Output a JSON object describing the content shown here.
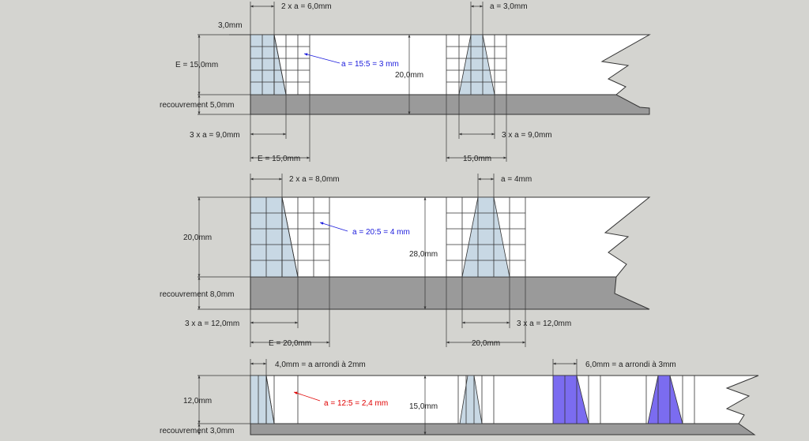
{
  "diagram1": {
    "top_dim_left": "2 x a = 6,0mm",
    "dim_3mm": "3,0mm",
    "label_E": "E = 15,0mm",
    "label_recouvrement": "recouvrement 5,0mm",
    "label_3a": "3 x a = 9,0mm",
    "label_E_bottom": "E = 15,0mm",
    "annotation": "a = 15:5 = 3 mm",
    "height_total": "20,0mm",
    "top_dim_right": "a = 3,0mm",
    "label_3a_right": "3 x a = 9,0mm",
    "label_15_right": "15,0mm"
  },
  "diagram2": {
    "top_dim_left": "2 x a = 8,0mm",
    "label_height": "20,0mm",
    "label_recouvrement": "recouvrement 8,0mm",
    "label_3a": "3 x a = 12,0mm",
    "label_E_bottom": "E = 20,0mm",
    "annotation": "a = 20:5 = 4 mm",
    "height_total": "28,0mm",
    "top_dim_right": "a = 4mm",
    "label_3a_right": "3 x a = 12,0mm",
    "label_20_right": "20,0mm"
  },
  "diagram3": {
    "top_dim_left": "4,0mm = a arrondi à 2mm",
    "label_height": "12,0mm",
    "label_recouvrement": "recouvrement 3,0mm",
    "annotation": "a = 12:5 = 2,4 mm",
    "height_total": "15,0mm",
    "top_dim_right": "6,0mm = a arrondi à 3mm"
  },
  "colors": {
    "background": "#d4d4d0",
    "panel": "#ffffff",
    "cover": "#9a9a9a",
    "wedge": "#c8d8e4",
    "wedge_purple": "#7b6cf0",
    "annotation_blue": "#1a1adc",
    "annotation_red": "#e00000"
  }
}
